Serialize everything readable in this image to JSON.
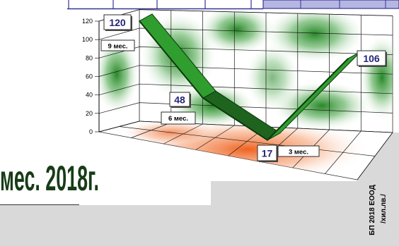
{
  "headline_fragment": "мес. 2018г.",
  "side_caption": {
    "line1": "БП 2018 ЕООД",
    "line2": "/хил.лв./"
  },
  "chart_data": {
    "type": "line",
    "three_d": true,
    "categories": [
      "9 мес.",
      "6 мес.",
      "3 мес.",
      ""
    ],
    "values": [
      120,
      48,
      17,
      106
    ],
    "yticks": [
      "0",
      "20",
      "40",
      "60",
      "80",
      "100",
      "120"
    ],
    "ylim": [
      0,
      120
    ],
    "grid": true,
    "legend": "none"
  },
  "colors": {
    "ribbon": "#2f9e2f",
    "ribbon_shade": "#1e641e",
    "ribbon_edge": "#0c380c",
    "wall_green": "#117a11",
    "floor_orange": "#ee5a14",
    "value_label": "#24247a",
    "header_band": "#b6b6e2",
    "frame_blue": "#34349a",
    "panel_gray": "#d9d9d9"
  }
}
